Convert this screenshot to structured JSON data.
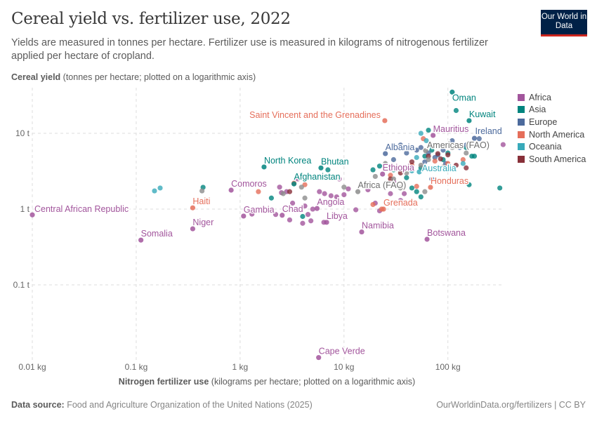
{
  "header": {
    "title": "Cereal yield vs. fertilizer use, 2022",
    "subtitle": "Yields are measured in tonnes per hectare. Fertilizer use is measured in kilograms of nitrogenous fertilizer applied per hectare of cropland.",
    "logo": "Our World in Data"
  },
  "footer": {
    "source_label": "Data source:",
    "source": "Food and Agriculture Organization of the United Nations (2025)",
    "license": "OurWorldinData.org/fertilizers | CC BY"
  },
  "chart_data": {
    "type": "scatter",
    "title": "Cereal yield vs. fertilizer use, 2022",
    "ylabel_bold": "Cereal yield",
    "ylabel_rest": "(tonnes per hectare; plotted on a logarithmic axis)",
    "xlabel_bold": "Nitrogen fertilizer use",
    "xlabel_rest": "(kilograms per hectare; plotted on a logarithmic axis)",
    "x_scale": "log",
    "y_scale": "log",
    "xlim": [
      0.01,
      333
    ],
    "ylim": [
      0.0098,
      40
    ],
    "x_ticks": [
      {
        "v": 0.01,
        "label": "0.01 kg"
      },
      {
        "v": 0.1,
        "label": "0.1 kg"
      },
      {
        "v": 1,
        "label": "1 kg"
      },
      {
        "v": 10,
        "label": "10 kg"
      },
      {
        "v": 100,
        "label": "100 kg"
      }
    ],
    "y_ticks": [
      {
        "v": 0.1,
        "label": "0.1 t"
      },
      {
        "v": 1,
        "label": "1 t"
      },
      {
        "v": 10,
        "label": "10 t"
      }
    ],
    "grid": true,
    "legend_position": "right",
    "regions": [
      {
        "name": "Africa",
        "color": "#a2559c"
      },
      {
        "name": "Asia",
        "color": "#00847e"
      },
      {
        "name": "Europe",
        "color": "#4c6a9c"
      },
      {
        "name": "North America",
        "color": "#e56e5a"
      },
      {
        "name": "Oceania",
        "color": "#38aaba"
      },
      {
        "name": "South America",
        "color": "#883039"
      }
    ],
    "aggregate_color": "#8c8c8c",
    "labeled_points": [
      {
        "label": "Central African Republic",
        "x": 0.01,
        "y": 0.84,
        "region": "Africa"
      },
      {
        "label": "Somalia",
        "x": 0.111,
        "y": 0.39,
        "region": "Africa"
      },
      {
        "label": "Niger",
        "x": 0.35,
        "y": 0.55,
        "region": "Africa"
      },
      {
        "label": "Haiti",
        "x": 0.35,
        "y": 1.04,
        "region": "North America"
      },
      {
        "label": "Comoros",
        "x": 0.82,
        "y": 1.78,
        "region": "Africa"
      },
      {
        "label": "Gambia",
        "x": 1.08,
        "y": 0.81,
        "region": "Africa"
      },
      {
        "label": "Chad",
        "x": 2.54,
        "y": 0.83,
        "region": "Africa"
      },
      {
        "label": "North Korea",
        "x": 1.7,
        "y": 3.6,
        "region": "Asia"
      },
      {
        "label": "Bhutan",
        "x": 6.0,
        "y": 3.5,
        "region": "Asia"
      },
      {
        "label": "Afghanistan",
        "x": 3.3,
        "y": 2.15,
        "region": "Asia"
      },
      {
        "label": "Angola",
        "x": 5.5,
        "y": 1.02,
        "region": "Africa"
      },
      {
        "label": "Libya",
        "x": 6.8,
        "y": 0.67,
        "region": "Africa"
      },
      {
        "label": "Cape Verde",
        "x": 5.7,
        "y": 0.011,
        "region": "Africa"
      },
      {
        "label": "Namibia",
        "x": 14.8,
        "y": 0.5,
        "region": "Africa"
      },
      {
        "label": "Botswana",
        "x": 63,
        "y": 0.4,
        "region": "Africa"
      },
      {
        "label": "Grenada",
        "x": 24,
        "y": 1.0,
        "region": "North America"
      },
      {
        "label": "Saint Vincent and the Grenadines",
        "x": 24.7,
        "y": 14.7,
        "region": "North America"
      },
      {
        "label": "Oman",
        "x": 110,
        "y": 35,
        "region": "Asia"
      },
      {
        "label": "Kuwait",
        "x": 160,
        "y": 14.7,
        "region": "Asia"
      },
      {
        "label": "Mauritius",
        "x": 72,
        "y": 9.4,
        "region": "Africa"
      },
      {
        "label": "Ireland",
        "x": 180,
        "y": 8.6,
        "region": "Europe"
      },
      {
        "label": "Americas (FAO)",
        "x": 61,
        "y": 5.9,
        "region": "aggregate"
      },
      {
        "label": "Albania",
        "x": 25,
        "y": 5.4,
        "region": "Europe"
      },
      {
        "label": "Ethiopia",
        "x": 23.5,
        "y": 2.9,
        "region": "Africa"
      },
      {
        "label": "Australia",
        "x": 53,
        "y": 3.1,
        "region": "Oceania"
      },
      {
        "label": "Honduras",
        "x": 68,
        "y": 1.94,
        "region": "North America"
      },
      {
        "label": "Africa (FAO)",
        "x": 13.6,
        "y": 1.7,
        "region": "aggregate"
      }
    ],
    "other_points": {
      "Africa": [
        [
          2.4,
          1.95
        ],
        [
          2.5,
          1.65
        ],
        [
          2.8,
          1.7
        ],
        [
          3.2,
          1.2
        ],
        [
          4.2,
          1.1
        ],
        [
          4.5,
          0.85
        ],
        [
          3.0,
          0.72
        ],
        [
          4.0,
          0.65
        ],
        [
          4.8,
          0.7
        ],
        [
          5.8,
          1.7
        ],
        [
          6.5,
          1.6
        ],
        [
          7.5,
          1.5
        ],
        [
          8.5,
          1.45
        ],
        [
          10,
          1.55
        ],
        [
          11,
          1.85
        ],
        [
          9,
          2.5
        ],
        [
          1.3,
          0.86
        ],
        [
          2.2,
          0.85
        ],
        [
          3.6,
          2.5
        ],
        [
          13,
          0.98
        ],
        [
          20,
          1.2
        ],
        [
          22,
          0.95
        ],
        [
          28,
          1.6
        ],
        [
          17,
          1.8
        ],
        [
          35,
          1.3
        ],
        [
          38,
          1.6
        ],
        [
          6.4,
          0.67
        ],
        [
          5,
          1.0
        ],
        [
          30,
          2.3
        ],
        [
          340,
          7.1
        ]
      ],
      "Asia": [
        [
          0.44,
          1.94
        ],
        [
          2.0,
          1.4
        ],
        [
          4.0,
          0.8
        ],
        [
          3.4,
          1.0
        ],
        [
          19,
          3.3
        ],
        [
          22,
          3.7
        ],
        [
          55,
          3.5
        ],
        [
          60,
          5
        ],
        [
          70,
          6
        ],
        [
          90,
          4.5
        ],
        [
          100,
          5.5
        ],
        [
          150,
          6.5
        ],
        [
          170,
          5
        ],
        [
          180,
          5
        ],
        [
          160,
          2.1
        ],
        [
          316,
          1.9
        ],
        [
          120,
          20
        ],
        [
          50,
          1.7
        ],
        [
          45,
          1.9
        ],
        [
          65,
          11
        ],
        [
          30,
          3.3
        ],
        [
          40,
          2.6
        ],
        [
          55,
          1.45
        ],
        [
          7,
          3.3
        ]
      ],
      "Europe": [
        [
          30,
          4.5
        ],
        [
          40,
          5.5
        ],
        [
          35,
          7
        ],
        [
          50,
          6
        ],
        [
          55,
          6.5
        ],
        [
          65,
          5.5
        ],
        [
          80,
          5.2
        ],
        [
          90,
          6
        ],
        [
          110,
          8
        ],
        [
          130,
          6.5
        ],
        [
          25,
          3.8
        ],
        [
          60,
          4.2
        ],
        [
          75,
          4.8
        ],
        [
          95,
          4.0
        ],
        [
          45,
          3.5
        ],
        [
          70,
          2.5
        ],
        [
          150,
          7
        ],
        [
          200,
          8.5
        ],
        [
          40,
          6.3
        ]
      ],
      "North America": [
        [
          1.5,
          1.7
        ],
        [
          3.3,
          2.2
        ],
        [
          4.2,
          2.1
        ],
        [
          19,
          1.15
        ],
        [
          23,
          1.0
        ],
        [
          28,
          2.8
        ],
        [
          45,
          3.8
        ],
        [
          50,
          2.0
        ],
        [
          75,
          4.3
        ],
        [
          58,
          8.5
        ],
        [
          100,
          4.0
        ],
        [
          140,
          4.5
        ]
      ],
      "Oceania": [
        [
          0.15,
          1.74
        ],
        [
          0.17,
          1.9
        ],
        [
          50,
          4.8
        ],
        [
          55,
          10
        ],
        [
          62,
          8
        ],
        [
          70,
          6.8
        ],
        [
          45,
          3.2
        ],
        [
          80,
          3.5
        ],
        [
          140,
          4
        ]
      ],
      "South America": [
        [
          3.0,
          1.7
        ],
        [
          28,
          2.5
        ],
        [
          45,
          4.2
        ],
        [
          65,
          5
        ],
        [
          80,
          5.4
        ],
        [
          85,
          4.6
        ],
        [
          100,
          5.2
        ],
        [
          120,
          3.8
        ],
        [
          150,
          3.5
        ],
        [
          35,
          3.0
        ]
      ],
      "aggregate": [
        [
          0.43,
          1.74
        ],
        [
          3.9,
          1.95
        ],
        [
          4.2,
          1.4
        ],
        [
          18,
          2.0
        ],
        [
          20,
          2.7
        ],
        [
          30,
          2.5
        ],
        [
          35,
          1.9
        ],
        [
          40,
          3.0
        ],
        [
          55,
          3.8
        ],
        [
          65,
          4.5
        ],
        [
          90,
          3.6
        ],
        [
          150,
          5.5
        ],
        [
          60,
          1.7
        ],
        [
          25,
          4.0
        ],
        [
          110,
          6.5
        ],
        [
          2.6,
          1.6
        ],
        [
          10,
          1.95
        ]
      ]
    }
  }
}
